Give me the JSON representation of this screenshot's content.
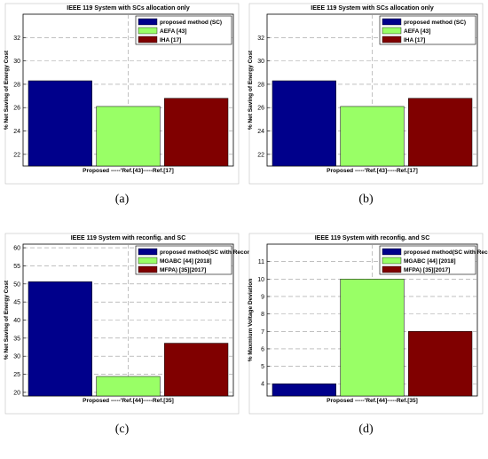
{
  "chart_data": [
    {
      "type": "bar",
      "panel": "a",
      "title": "IEEE 119 System with SCs allocation only",
      "xlabel": "Proposed -----'Ref.[43]-----Ref.[17]",
      "ylabel": "% Net Saving of Energy Cost",
      "caption": "(a)",
      "ylim": [
        21,
        34
      ],
      "yticks": [
        22,
        24,
        26,
        28,
        30,
        32
      ],
      "grid": true,
      "legend_position": "top-right",
      "series": [
        {
          "name": "proposed  method (SC)",
          "value": 28.3,
          "color": "#00008b"
        },
        {
          "name": "AEFA [43]",
          "value": 26.1,
          "color": "#99ff66"
        },
        {
          "name": "IHA [17]",
          "value": 26.8,
          "color": "#800000"
        }
      ]
    },
    {
      "type": "bar",
      "panel": "b",
      "title": "IEEE 119 System with SCs allocation only",
      "xlabel": "Proposed -----'Ref.[43]-----Ref.[17]",
      "ylabel": "% Net Saving of Energy Cost",
      "caption": "(b)",
      "ylim": [
        21,
        34
      ],
      "yticks": [
        22,
        24,
        26,
        28,
        30,
        32
      ],
      "grid": true,
      "legend_position": "top-right",
      "series": [
        {
          "name": "proposed  method (SC)",
          "value": 28.3,
          "color": "#00008b"
        },
        {
          "name": "AEFA [43]",
          "value": 26.1,
          "color": "#99ff66"
        },
        {
          "name": "IHA [17]",
          "value": 26.8,
          "color": "#800000"
        }
      ]
    },
    {
      "type": "bar",
      "panel": "c",
      "title": "IEEE 119 System with  reconfig. and SC",
      "xlabel": "Proposed -----'Ref.[44]-----Ref.[35]",
      "ylabel": "% Net Saving of Energy Cost",
      "caption": "(c)",
      "ylim": [
        19,
        61
      ],
      "yticks": [
        20,
        25,
        30,
        35,
        40,
        45,
        50,
        55,
        60
      ],
      "grid": true,
      "legend_position": "top-right",
      "series": [
        {
          "name": "proposed  method(SC with Reconf.)",
          "value": 50.6,
          "color": "#00008b"
        },
        {
          "name": "MGABC [44] [2018]",
          "value": 24.4,
          "color": "#99ff66"
        },
        {
          "name": "MFPA) [35][2017]",
          "value": 33.6,
          "color": "#800000"
        }
      ]
    },
    {
      "type": "bar",
      "panel": "d",
      "title": "IEEE 119 System with  reconfig. and SC",
      "xlabel": "Proposed -----'Ref.[44]-----Ref.[35]",
      "ylabel": "% Maxmium Voltage Deviation",
      "caption": "(d)",
      "ylim": [
        3.3,
        12
      ],
      "yticks": [
        4,
        5,
        6,
        7,
        8,
        9,
        10,
        11
      ],
      "grid": true,
      "legend_position": "top-right",
      "series": [
        {
          "name": "proposed  method(SC with Reconf.)",
          "value": 4.0,
          "color": "#00008b"
        },
        {
          "name": "MGABC [44] [2018]",
          "value": 10.0,
          "color": "#99ff66"
        },
        {
          "name": "MFPA) [35][2017]",
          "value": 7.0,
          "color": "#800000"
        }
      ]
    }
  ]
}
